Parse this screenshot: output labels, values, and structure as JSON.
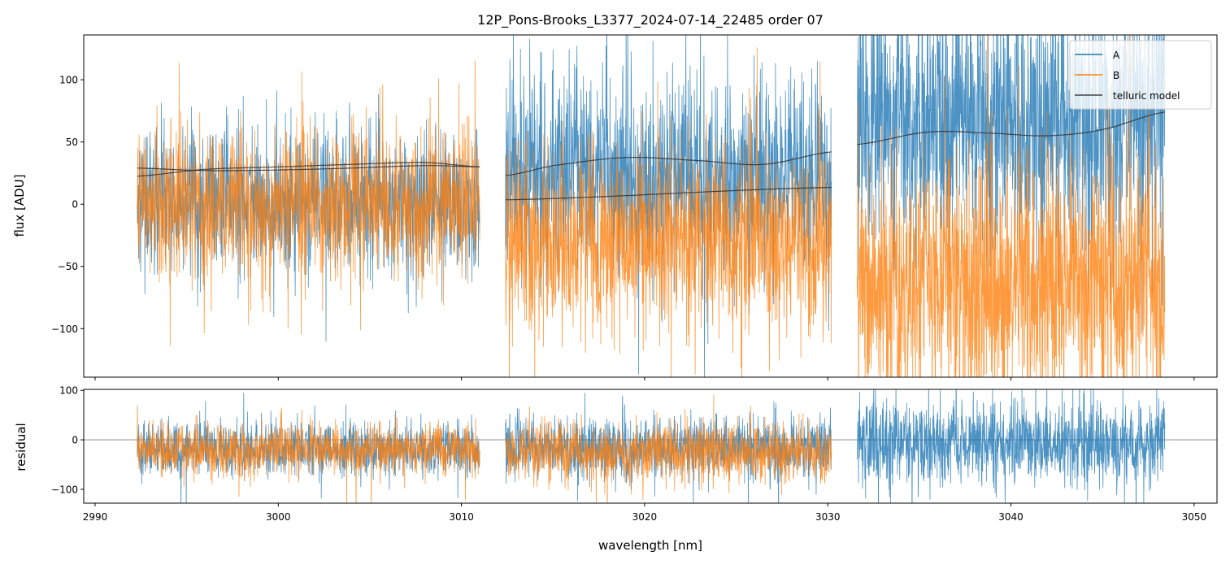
{
  "chart_data": {
    "type": "line",
    "title": "12P_Pons-Brooks_L3377_2024-07-14_22485  order 07",
    "xlabel": "wavelength [nm]",
    "xlim": [
      2989.38,
      3051.25
    ],
    "xticks": [
      2990,
      3000,
      3010,
      3020,
      3030,
      3040,
      3050
    ],
    "panels": [
      {
        "name": "flux",
        "ylabel": "flux [ADU]",
        "ylim": [
          -139,
          136
        ],
        "yticks": [
          100,
          50,
          0,
          -50,
          -100
        ],
        "yticklabels": [
          "100",
          "50",
          "0",
          "−50",
          "−100"
        ]
      },
      {
        "name": "residual",
        "ylabel": "residual",
        "ylim": [
          -128,
          102
        ],
        "yticks": [
          100,
          0,
          -100
        ],
        "yticklabels": [
          "100",
          "0",
          "−100"
        ],
        "hline": 0
      }
    ],
    "legend": {
      "placement": "top-right",
      "entries": [
        {
          "label": "A",
          "color": "#1f77b4"
        },
        {
          "label": "B",
          "color": "#ff7f0e"
        },
        {
          "label": "telluric model",
          "color": "#444444"
        }
      ]
    },
    "segments": [
      {
        "x_range": [
          2992.3,
          3011.0
        ],
        "flux": {
          "A": {
            "mean": 2,
            "std": 28
          },
          "B": {
            "mean": 0,
            "std": 30
          }
        },
        "residual": {
          "A": {
            "mean": -20,
            "std": 27
          },
          "B": {
            "mean": -20,
            "std": 26
          }
        },
        "model_A": {
          "x": [
            2992.3,
            2996,
            3000,
            3004,
            3008,
            3011.0
          ],
          "y": [
            22.5,
            28,
            30,
            32,
            33.5,
            30
          ]
        },
        "model_B": {
          "x": [
            2992.3,
            2996,
            3000,
            3004,
            3008,
            3011.0
          ],
          "y": [
            29,
            27,
            27.5,
            29,
            31,
            30
          ]
        }
      },
      {
        "x_range": [
          3012.4,
          3030.2
        ],
        "flux": {
          "A": {
            "mean": 25,
            "std": 38
          },
          "B": {
            "mean": -28,
            "std": 36
          }
        },
        "residual": {
          "A": {
            "mean": -15,
            "std": 30
          },
          "B": {
            "mean": -25,
            "std": 30
          }
        },
        "model_A": {
          "x": [
            3012.4,
            3015,
            3019,
            3023,
            3026.5,
            3030.2
          ],
          "y": [
            23,
            31,
            37.5,
            35,
            32,
            42
          ]
        },
        "model_B": {
          "x": [
            3012.4,
            3030.2
          ],
          "y": [
            3.5,
            13.5
          ]
        }
      },
      {
        "x_range": [
          3031.6,
          3048.4
        ],
        "flux": {
          "A": {
            "mean": 68,
            "std": 50
          },
          "B": {
            "mean": -62,
            "std": 50
          }
        },
        "residual": {
          "A": {
            "mean": -8,
            "std": 42
          }
        },
        "model_A": {
          "x": [
            3031.6,
            3035.5,
            3039,
            3042,
            3045,
            3048.4
          ],
          "y": [
            48,
            58,
            57,
            55,
            60,
            74
          ]
        }
      }
    ]
  }
}
